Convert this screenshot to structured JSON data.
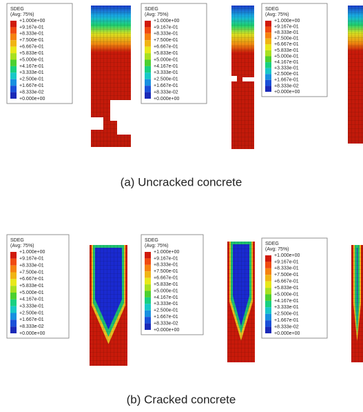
{
  "legend": {
    "title": "SDEG",
    "subtitle": "(Avg: 75%)",
    "labels": [
      "+1.000e+00",
      "+9.167e-01",
      "+8.333e-01",
      "+7.500e-01",
      "+6.667e-01",
      "+5.833e-01",
      "+5.000e-01",
      "+4.167e-01",
      "+3.333e-01",
      "+2.500e-01",
      "+1.667e-01",
      "+8.333e-02",
      "+0.000e+00"
    ]
  },
  "panels": [
    {
      "caption": "(a) Uncracked concrete"
    },
    {
      "caption": "(b) Cracked concrete"
    }
  ]
}
